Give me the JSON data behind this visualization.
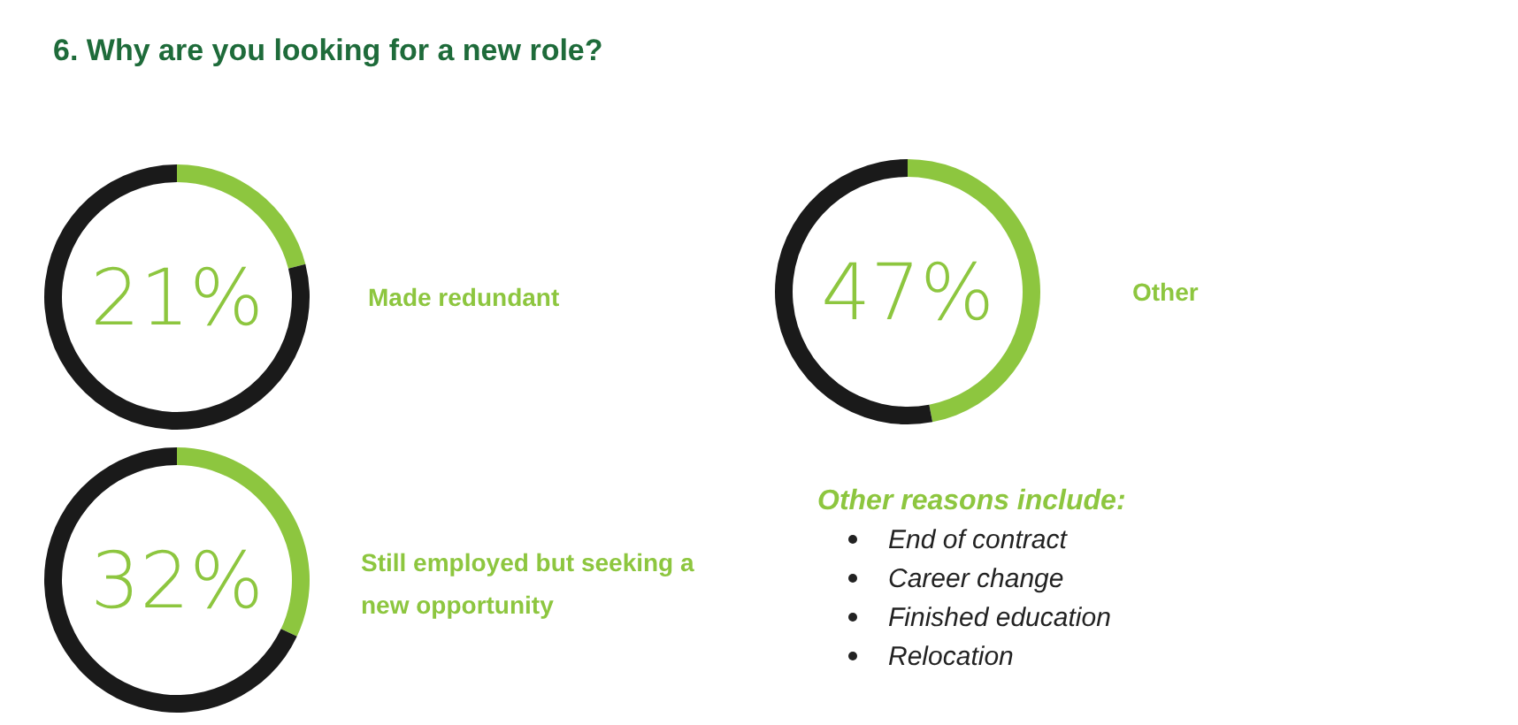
{
  "chart_data": [
    {
      "type": "other",
      "title": "6. Why are you looking for a new role?"
    },
    {
      "type": "donut",
      "title": "Made redundant",
      "categories": [
        null,
        null
      ],
      "values": [
        21,
        79
      ],
      "colors": [
        "#8dc63f",
        "#1a1a1a"
      ],
      "annotations": [
        "21%"
      ]
    },
    {
      "type": "donut",
      "title": "Still employed but seeking a new opportunity",
      "categories": [
        null,
        null
      ],
      "values": [
        32,
        68
      ],
      "colors": [
        "#8dc63f",
        "#1a1a1a"
      ],
      "annotations": [
        "32%"
      ]
    },
    {
      "type": "donut",
      "title": "Other",
      "categories": [
        null,
        null
      ],
      "values": [
        47,
        53
      ],
      "colors": [
        "#8dc63f",
        "#1a1a1a"
      ],
      "annotations": [
        "47%"
      ]
    },
    {
      "type": "other",
      "title": "Other reasons include:",
      "annotations": [
        "End of contract",
        "Career change",
        "Finished education",
        "Relocation"
      ]
    }
  ]
}
